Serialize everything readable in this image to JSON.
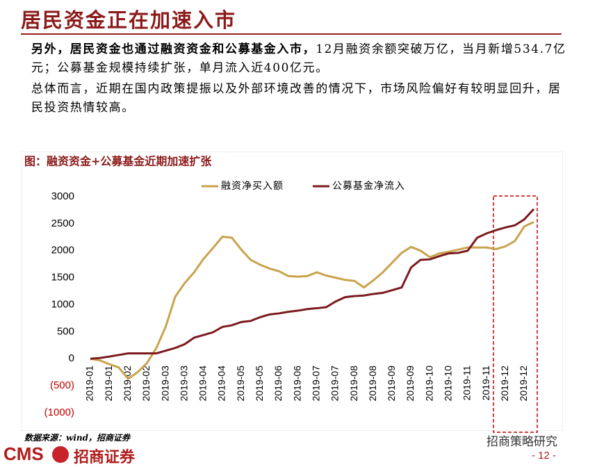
{
  "header": {
    "title": "居民资金正在加速入市",
    "para1_bold": "另外，居民资金也通过融资资金和公募基金入市，",
    "para1_rest": "12月融资余额突破万亿，当月新增534.7亿元；公募基金规模持续扩张，单月流入近400亿元。",
    "para2": "总体而言，近期在国内政策提振以及外部环境改善的情况下，市场风险偏好有较明显回升，居民投资热情较高。"
  },
  "footer": {
    "source": "数据来源：wind，招商证券",
    "logo": "CMS",
    "logo_name": "招商证券",
    "watermark": "招商策略研究",
    "page": "- 12 -"
  },
  "chart_data": {
    "type": "line",
    "title": "图：融资资金+公募基金近期加速扩张",
    "categories": [
      "2019-01",
      null,
      "2019-01",
      null,
      "2019-02",
      null,
      "2019-02",
      null,
      "2019-03",
      null,
      "2019-03",
      null,
      "2019-04",
      null,
      "2019-04",
      null,
      "2019-05",
      null,
      "2019-05",
      null,
      "2019-06",
      null,
      "2019-06",
      null,
      "2019-07",
      null,
      "2019-07",
      null,
      "2019-08",
      null,
      "2019-08",
      null,
      "2019-09",
      null,
      "2019-09",
      null,
      "2019-10",
      null,
      "2019-10",
      null,
      "2019-11",
      null,
      "2019-11",
      null,
      "2019-12",
      null,
      "2019-12",
      null
    ],
    "series": [
      {
        "name": "融资净买入额",
        "color": "#c9a24c",
        "values": [
          0,
          -30,
          -100,
          -160,
          -370,
          -250,
          -80,
          200,
          600,
          1150,
          1400,
          1600,
          1850,
          2050,
          2260,
          2240,
          2020,
          1830,
          1740,
          1670,
          1620,
          1530,
          1520,
          1530,
          1600,
          1540,
          1500,
          1460,
          1440,
          1320,
          1450,
          1600,
          1780,
          1960,
          2070,
          2000,
          1880,
          1950,
          1980,
          2020,
          2060,
          2060,
          2060,
          2030,
          2080,
          2180,
          2450,
          2530
        ]
      },
      {
        "name": "公募基金净流入",
        "color": "#7b1a1e",
        "values": [
          0,
          15,
          40,
          70,
          100,
          100,
          100,
          100,
          150,
          200,
          270,
          390,
          440,
          490,
          590,
          620,
          680,
          700,
          770,
          820,
          840,
          870,
          890,
          920,
          935,
          955,
          1060,
          1140,
          1160,
          1170,
          1200,
          1220,
          1270,
          1320,
          1690,
          1830,
          1840,
          1900,
          1950,
          1960,
          2000,
          2240,
          2320,
          2380,
          2430,
          2470,
          2580,
          2770
        ]
      }
    ],
    "ylim": [
      -1000,
      3000
    ],
    "yticks": [
      {
        "value": -1000,
        "label": "(1000)"
      },
      {
        "value": -500,
        "label": "(500)"
      },
      0,
      500,
      1000,
      1500,
      2000,
      2500,
      3000
    ],
    "negative_tick_color": "#c00000",
    "grid": false
  }
}
